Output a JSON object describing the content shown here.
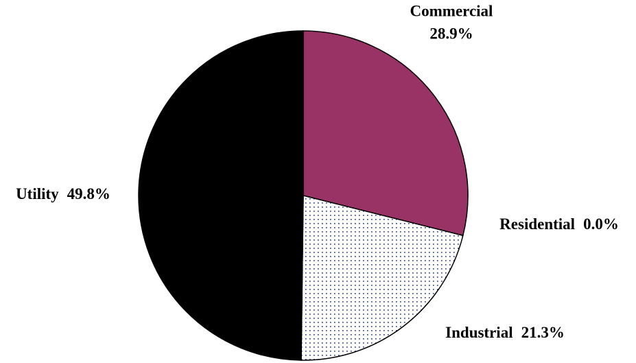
{
  "chart_data": {
    "type": "pie",
    "categories": [
      "Commercial",
      "Residential",
      "Industrial",
      "Utility"
    ],
    "values": [
      28.9,
      0.0,
      21.3,
      49.8
    ],
    "value_labels": [
      "28.9%",
      "0.0%",
      "21.3%",
      "49.8%"
    ],
    "colors": [
      "#993366",
      "#ffffff",
      "#1f2f8f",
      "#000000"
    ],
    "patterns": [
      "solid",
      "solid",
      "dots",
      "solid"
    ]
  }
}
